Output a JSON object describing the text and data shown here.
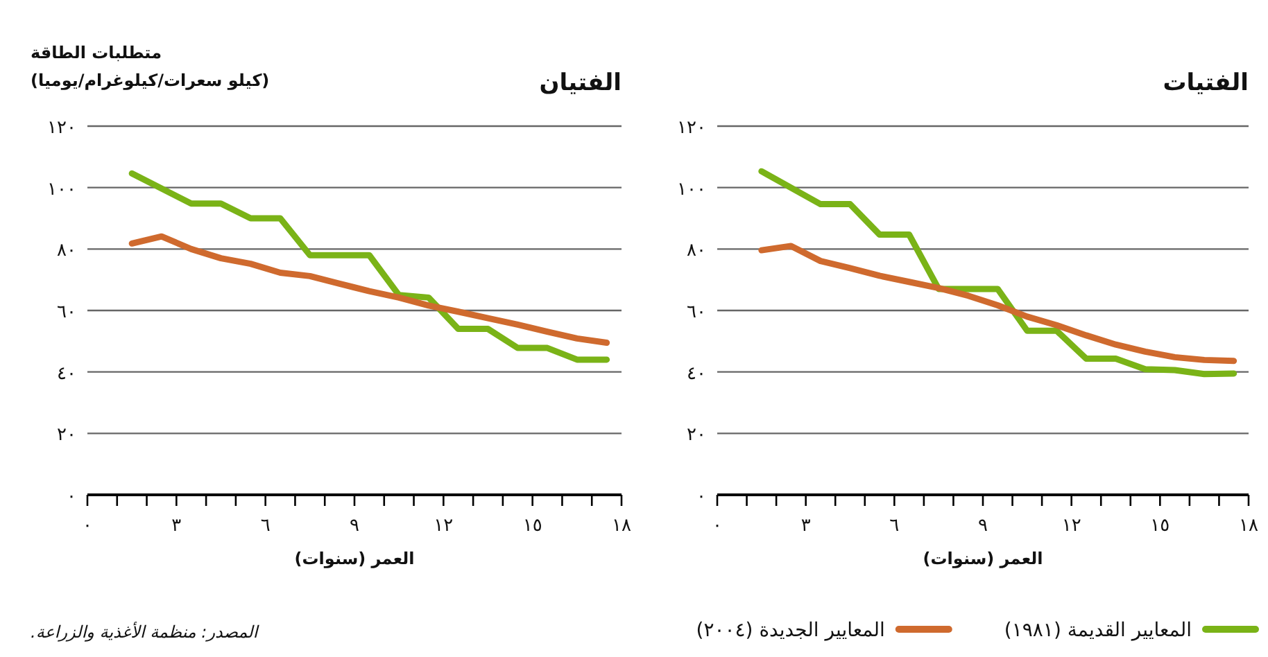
{
  "chart_data": [
    {
      "type": "line",
      "title": "الفتيان",
      "ylabel": "متطلبات الطاقة\n(كيلو سعرات/كيلوغرام/يوميا)",
      "xlabel": "العمر (سنوات)",
      "xlim": [
        0,
        18
      ],
      "ylim": [
        0,
        120
      ],
      "xticks": [
        {
          "value": 0,
          "label": "٠"
        },
        {
          "value": 1,
          "label": null
        },
        {
          "value": 2,
          "label": null
        },
        {
          "value": 3,
          "label": "٣"
        },
        {
          "value": 4,
          "label": null
        },
        {
          "value": 5,
          "label": null
        },
        {
          "value": 6,
          "label": "٦"
        },
        {
          "value": 7,
          "label": null
        },
        {
          "value": 8,
          "label": null
        },
        {
          "value": 9,
          "label": "٩"
        },
        {
          "value": 10,
          "label": null
        },
        {
          "value": 11,
          "label": null
        },
        {
          "value": 12,
          "label": "١٢"
        },
        {
          "value": 13,
          "label": null
        },
        {
          "value": 14,
          "label": null
        },
        {
          "value": 15,
          "label": "١٥"
        },
        {
          "value": 16,
          "label": null
        },
        {
          "value": 17,
          "label": null
        },
        {
          "value": 18,
          "label": "١٨"
        }
      ],
      "yticks": [
        {
          "value": 0,
          "label": "٠"
        },
        {
          "value": 20,
          "label": "٢٠"
        },
        {
          "value": 40,
          "label": "٤٠"
        },
        {
          "value": 60,
          "label": "٦٠"
        },
        {
          "value": 80,
          "label": "٨٠"
        },
        {
          "value": 100,
          "label": "١٠٠"
        },
        {
          "value": 120,
          "label": "١٢٠"
        }
      ],
      "grid": "y",
      "legend": "bottom",
      "line_style": "solid",
      "marker": "none",
      "series": [
        {
          "name": "المعايير القديمة (١٩٨١)",
          "color": "#7ab317",
          "x": [
            1.5,
            3.5,
            4.5,
            5.5,
            6.5,
            7.5,
            9.5,
            10.5,
            11.5,
            12.5,
            13.5,
            14.5,
            15.5,
            16.5,
            17.5
          ],
          "values": [
            104.6,
            94.8,
            94.8,
            90,
            90,
            78,
            78,
            65,
            64.2,
            54,
            54,
            47.8,
            47.8,
            44,
            44
          ]
        },
        {
          "name": "المعايير الجديدة (٢٠٠٤)",
          "color": "#cf6a2e",
          "x": [
            1.5,
            2.5,
            3.5,
            4.5,
            5.5,
            6.5,
            7.5,
            8.5,
            9.5,
            10.5,
            11.5,
            12.5,
            13.5,
            14.5,
            15.5,
            16.5,
            17.5
          ],
          "values": [
            81.8,
            84.1,
            80,
            77,
            75.2,
            72.3,
            71.2,
            68.7,
            66.3,
            64.2,
            61.6,
            59.6,
            57.5,
            55.4,
            53.1,
            50.9,
            49.5
          ]
        }
      ],
      "annotations": [
        "المصدر: منظمة الأغذية والزراعة."
      ]
    },
    {
      "type": "line",
      "title": "الفتيات",
      "xlabel": "العمر (سنوات)",
      "xlim": [
        0,
        18
      ],
      "ylim": [
        0,
        120
      ],
      "xticks": [
        {
          "value": 0,
          "label": "٠"
        },
        {
          "value": 1,
          "label": null
        },
        {
          "value": 2,
          "label": null
        },
        {
          "value": 3,
          "label": "٣"
        },
        {
          "value": 4,
          "label": null
        },
        {
          "value": 5,
          "label": null
        },
        {
          "value": 6,
          "label": "٦"
        },
        {
          "value": 7,
          "label": null
        },
        {
          "value": 8,
          "label": null
        },
        {
          "value": 9,
          "label": "٩"
        },
        {
          "value": 10,
          "label": null
        },
        {
          "value": 11,
          "label": null
        },
        {
          "value": 12,
          "label": "١٢"
        },
        {
          "value": 13,
          "label": null
        },
        {
          "value": 14,
          "label": null
        },
        {
          "value": 15,
          "label": "١٥"
        },
        {
          "value": 16,
          "label": null
        },
        {
          "value": 17,
          "label": null
        },
        {
          "value": 18,
          "label": "١٨"
        }
      ],
      "yticks": [
        {
          "value": 0,
          "label": "٠"
        },
        {
          "value": 20,
          "label": "٢٠"
        },
        {
          "value": 40,
          "label": "٤٠"
        },
        {
          "value": 60,
          "label": "٦٠"
        },
        {
          "value": 80,
          "label": "٨٠"
        },
        {
          "value": 100,
          "label": "١٠٠"
        },
        {
          "value": 120,
          "label": "١٢٠"
        }
      ],
      "grid": "y",
      "line_style": "solid",
      "marker": "none",
      "series": [
        {
          "color": "#7ab317",
          "x": [
            1.5,
            3.5,
            4.5,
            5.5,
            6.5,
            7.5,
            9.5,
            10.5,
            11.5,
            12.5,
            13.5,
            14.5,
            15.5,
            16.5,
            17.5
          ],
          "values": [
            105.3,
            94.6,
            94.6,
            84.7,
            84.7,
            67,
            67,
            53.4,
            53.4,
            44.3,
            44.3,
            40.9,
            40.6,
            39.3,
            39.5
          ]
        },
        {
          "color": "#cf6a2e",
          "x": [
            1.5,
            2.5,
            3.5,
            4.5,
            5.5,
            6.5,
            7.5,
            8.5,
            9.5,
            10.5,
            11.5,
            12.5,
            13.5,
            14.5,
            15.5,
            16.5,
            17.5
          ],
          "values": [
            79.6,
            81,
            76.1,
            73.8,
            71.3,
            69.3,
            67.3,
            64.8,
            61.7,
            58,
            55.2,
            51.9,
            48.9,
            46.6,
            44.8,
            43.9,
            43.6
          ]
        }
      ]
    }
  ]
}
